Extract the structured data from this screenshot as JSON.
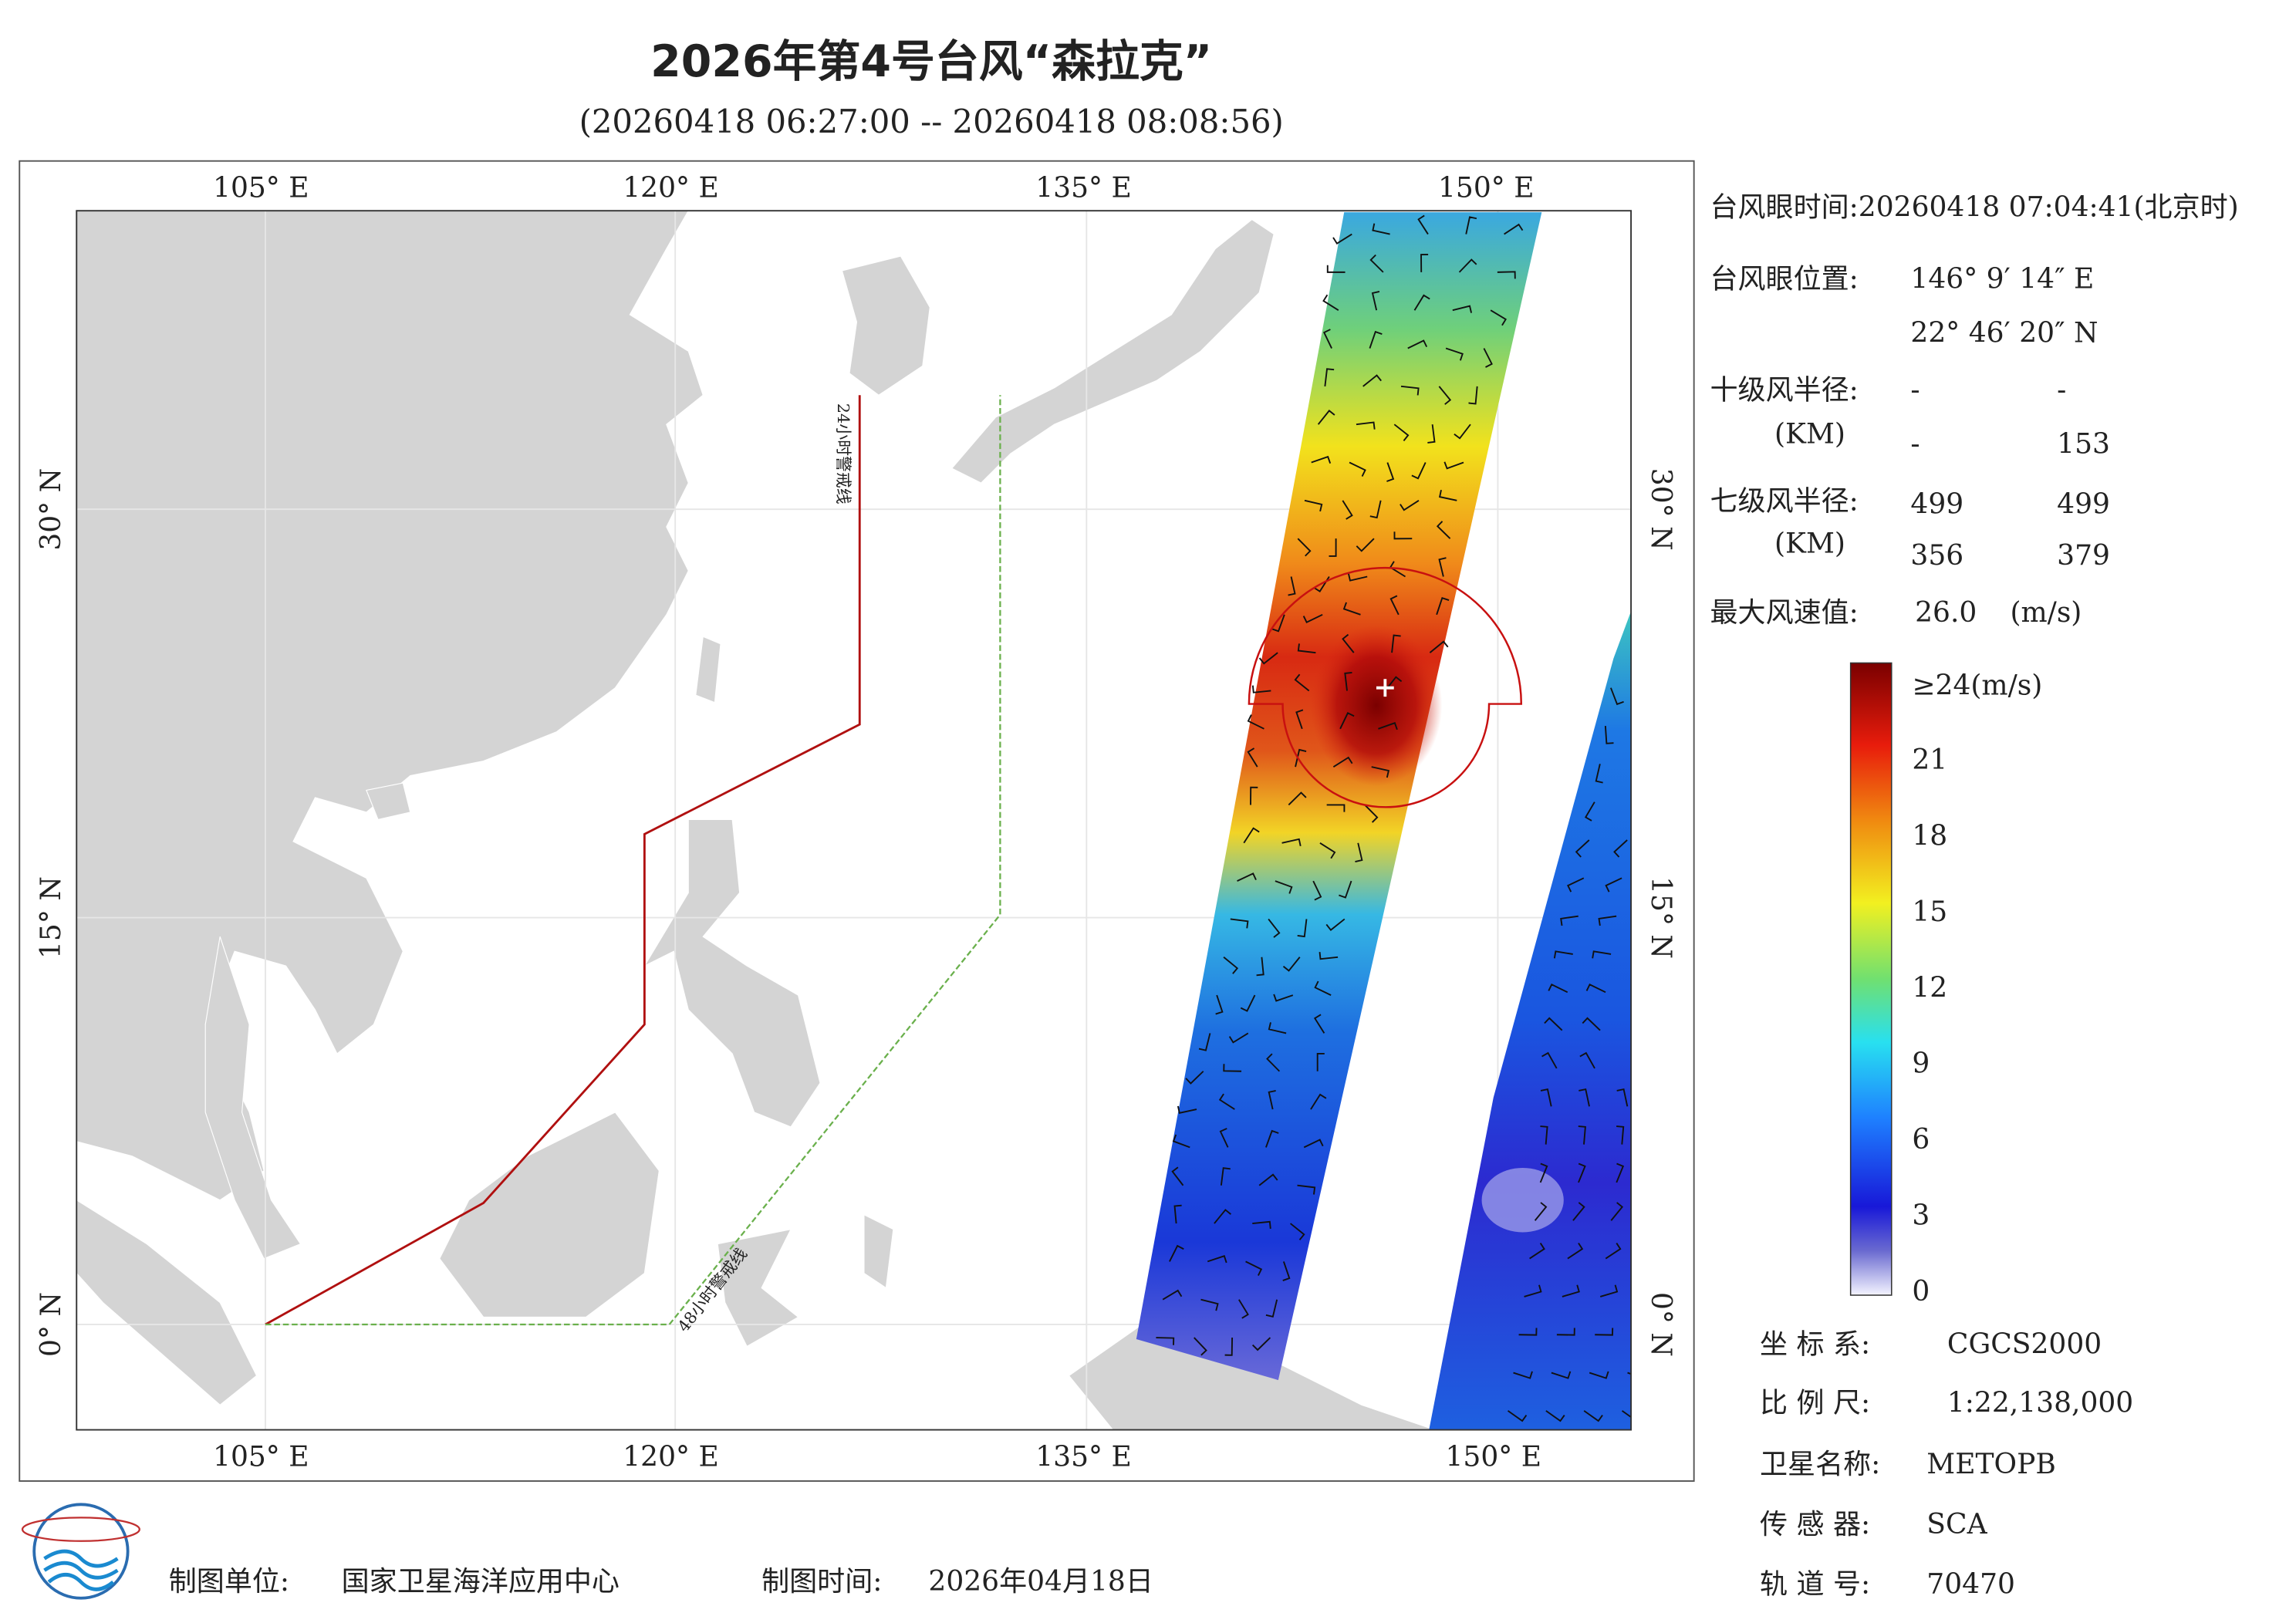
{
  "header": {
    "title": "2026年第4号台风“森拉克”",
    "subtitle": "(20260418 06:27:00 -- 20260418 08:08:56)"
  },
  "map": {
    "lon_labels": [
      "105° E",
      "120° E",
      "135° E",
      "150° E"
    ],
    "lat_labels": [
      "0° N",
      "15° N",
      "30° N"
    ],
    "warning_24": "24小时警戒线",
    "warning_48": "48小时警戒线"
  },
  "info": {
    "eye_time": "台风眼时间:20260418 07:04:41(北京时)",
    "eye_position_label": "台风眼位置:",
    "eye_lon": "146° 9′ 14″ E",
    "eye_lat": "22° 46′ 20″ N",
    "r10_label": "十级风半径:",
    "km": "(KM)",
    "r10": [
      "-",
      "-",
      "-",
      "153"
    ],
    "r7_label": "七级风半径:",
    "r7": [
      "499",
      "499",
      "356",
      "379"
    ],
    "max_wind_label": "最大风速值:",
    "max_wind": "26.0",
    "max_wind_unit": "(m/s)"
  },
  "colorbar": {
    "top_label": "≥24(m/s)",
    "ticks": [
      0,
      3,
      6,
      9,
      12,
      15,
      18,
      21
    ]
  },
  "meta": [
    {
      "label": "坐 标 系:",
      "value": "CGCS2000"
    },
    {
      "label": "比 例 尺:",
      "value": "1:22,138,000"
    },
    {
      "label": "卫星名称:",
      "value": "METOPB"
    },
    {
      "label": "传 感 器:",
      "value": "SCA"
    },
    {
      "label": "轨 道 号:",
      "value": "70470"
    }
  ],
  "footer": {
    "unit_label": "制图单位:",
    "unit": "国家卫星海洋应用中心",
    "time_label": "制图时间:",
    "time": "2026年04月18日"
  }
}
